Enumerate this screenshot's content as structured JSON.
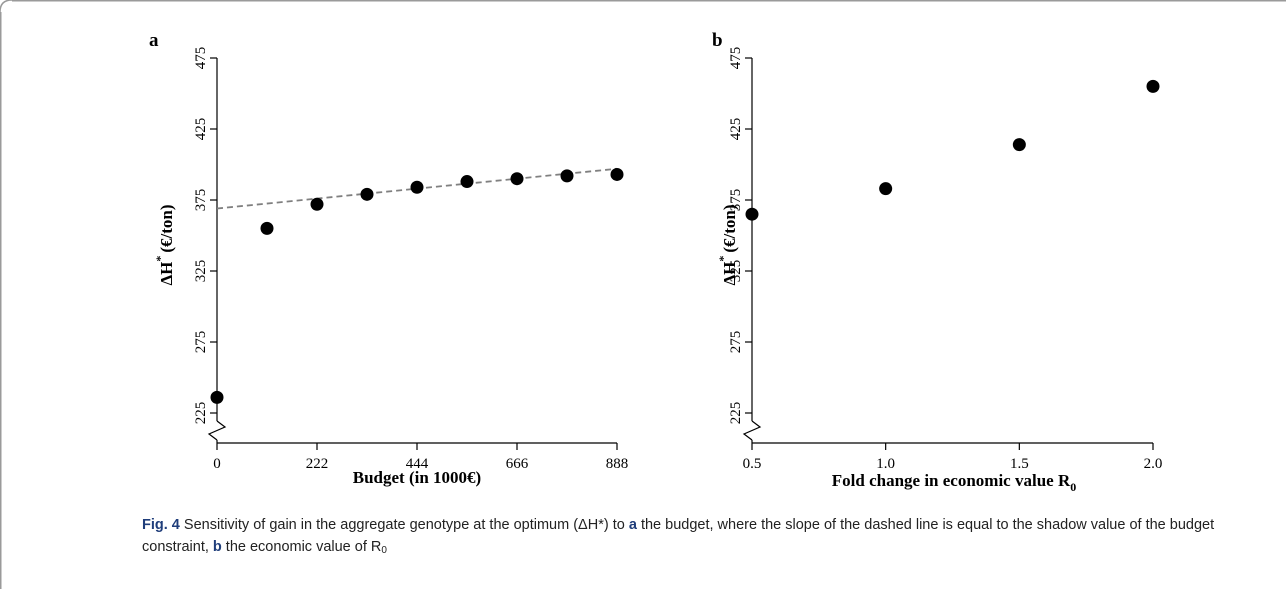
{
  "chart_data": [
    {
      "type": "scatter",
      "panel_label": "a",
      "xlabel": "Budget (in 1000€)",
      "ylabel_main": "ΔH",
      "ylabel_sup": "*",
      "ylabel_unit": "(€/ton)",
      "x_ticks": [
        0,
        222,
        444,
        666,
        888
      ],
      "y_ticks": [
        225,
        275,
        325,
        375,
        425,
        475
      ],
      "xlim": [
        0,
        888
      ],
      "ylim": [
        200,
        475
      ],
      "axis_break": true,
      "points": [
        {
          "x": 0,
          "y": 236
        },
        {
          "x": 111,
          "y": 355
        },
        {
          "x": 222,
          "y": 372
        },
        {
          "x": 333,
          "y": 379
        },
        {
          "x": 444,
          "y": 384
        },
        {
          "x": 555,
          "y": 388
        },
        {
          "x": 666,
          "y": 390
        },
        {
          "x": 777,
          "y": 392
        },
        {
          "x": 888,
          "y": 393
        }
      ],
      "trend_line": {
        "style": "dashed",
        "x": [
          0,
          888
        ],
        "y": [
          369,
          397
        ]
      }
    },
    {
      "type": "scatter",
      "panel_label": "b",
      "xlabel": "Fold change in economic value R",
      "xlabel_sub": "0",
      "ylabel_main": "ΔH",
      "ylabel_sup": "*",
      "ylabel_unit": "(€/ton)",
      "x_ticks": [
        "0.5",
        "1.0",
        "1.5",
        "2.0"
      ],
      "y_ticks": [
        225,
        275,
        325,
        375,
        425,
        475
      ],
      "xlim": [
        0.5,
        2.0
      ],
      "ylim": [
        200,
        475
      ],
      "axis_break": true,
      "points": [
        {
          "x": 0.5,
          "y": 365
        },
        {
          "x": 1.0,
          "y": 383
        },
        {
          "x": 1.5,
          "y": 414
        },
        {
          "x": 2.0,
          "y": 455
        }
      ]
    }
  ],
  "caption": {
    "fig_label": "Fig. 4",
    "part1": " Sensitivity of gain in the aggregate genotype at the optimum (ΔH*) to ",
    "a": "a",
    "part2": " the budget, where the slope of the dashed line is equal to the shadow value of the budget constraint, ",
    "b": "b",
    "part3": " the economic value of R",
    "sub": "0"
  },
  "colors": {
    "points": "#000000",
    "dashed_line": "#808080",
    "frame": "#9a9a9a",
    "caption_label": "#1f3d7a"
  }
}
